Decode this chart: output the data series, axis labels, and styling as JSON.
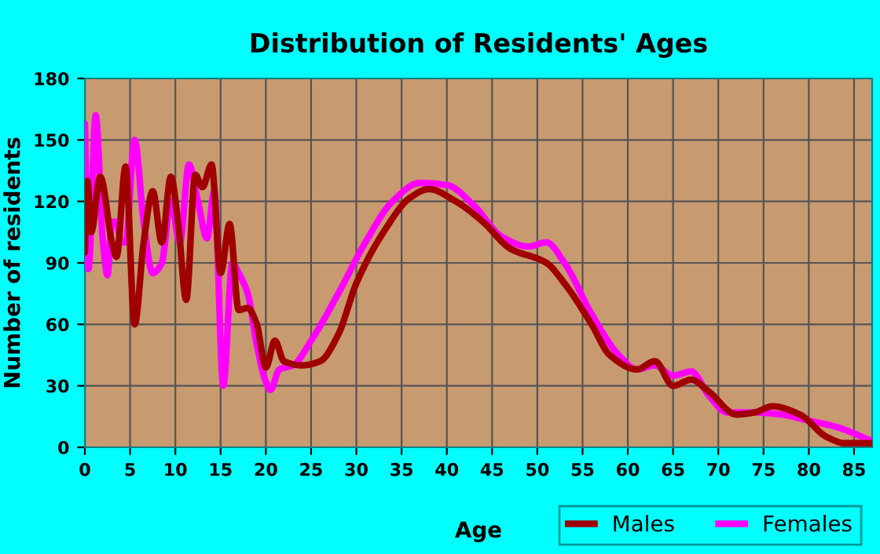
{
  "chart_data": {
    "type": "line",
    "title": "Distribution of Residents' Ages",
    "xlabel": "Age",
    "ylabel": "Number of residents",
    "xlim": [
      0,
      87
    ],
    "xticks": [
      0,
      5,
      10,
      15,
      20,
      25,
      30,
      35,
      40,
      45,
      50,
      55,
      60,
      65,
      70,
      75,
      80,
      85
    ],
    "ylim": [
      0,
      180
    ],
    "yticks": [
      0,
      30,
      60,
      90,
      120,
      150,
      180
    ],
    "grid": true,
    "legend": "bottom right",
    "line_style": "solid",
    "marker": "none",
    "series": [
      {
        "name": "Males",
        "color": "#a00000",
        "x": [
          0,
          0.3,
          0.7,
          1.7,
          3,
          3.5,
          4.5,
          5.5,
          6.5,
          7.5,
          8.5,
          9.5,
          10.3,
          11.2,
          12.2,
          13,
          14,
          15,
          16,
          17,
          18,
          19,
          20,
          21,
          22,
          24,
          26,
          28,
          30,
          33,
          36,
          38,
          41,
          44,
          47,
          51,
          53,
          56,
          58,
          61,
          63,
          65,
          67,
          69,
          72,
          74,
          76,
          79,
          82,
          84,
          87
        ],
        "values": [
          95,
          130,
          105,
          132,
          100,
          93,
          137,
          60,
          100,
          125,
          100,
          132,
          110,
          72,
          133,
          127,
          138,
          85,
          109,
          67,
          68,
          60,
          39,
          52,
          42,
          40,
          42,
          55,
          80,
          105,
          122,
          126,
          120,
          110,
          97,
          90,
          80,
          60,
          45,
          38,
          42,
          30,
          33,
          27,
          16,
          17,
          20,
          16,
          5,
          2,
          2
        ]
      },
      {
        "name": "Females",
        "color": "#ff00ff",
        "x": [
          0,
          0.4,
          1.2,
          2,
          2.5,
          3,
          3.5,
          4,
          4.5,
          5.5,
          6.5,
          7.5,
          8.5,
          9.5,
          10.5,
          11.5,
          12.5,
          13.5,
          14.3,
          15.3,
          16.3,
          17,
          18,
          19,
          20,
          20.5,
          21.5,
          23,
          25,
          28,
          31,
          34,
          37,
          40,
          43,
          46,
          49,
          51,
          53,
          56,
          59,
          61,
          63,
          65,
          67,
          69,
          71,
          74,
          77,
          80,
          83,
          87
        ],
        "values": [
          158,
          87,
          162,
          100,
          84,
          110,
          110,
          100,
          100,
          150,
          110,
          85,
          90,
          120,
          100,
          138,
          120,
          102,
          125,
          30,
          90,
          85,
          75,
          50,
          32,
          28,
          38,
          40,
          52,
          75,
          100,
          120,
          129,
          128,
          118,
          103,
          98,
          100,
          90,
          65,
          45,
          38,
          40,
          35,
          37,
          25,
          17,
          17,
          16,
          13,
          10,
          3
        ]
      }
    ]
  }
}
